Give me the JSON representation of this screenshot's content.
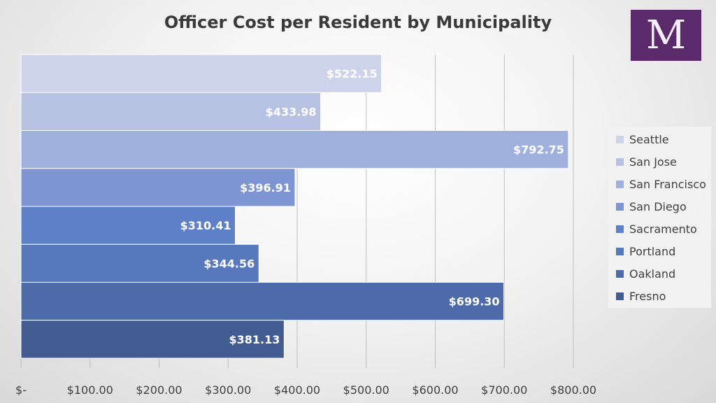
{
  "logo": {
    "letter": "M",
    "background": "#5a2a6a"
  },
  "chart_data": {
    "type": "bar",
    "orientation": "horizontal",
    "title": "Officer Cost per Resident by Municipality",
    "categories": [
      "Seattle",
      "San Jose",
      "San Francisco",
      "San Diego",
      "Sacramento",
      "Portland",
      "Oakland",
      "Fresno"
    ],
    "values": [
      522.15,
      433.98,
      792.75,
      396.91,
      310.41,
      344.56,
      699.3,
      381.13
    ],
    "data_labels": [
      "$522.15",
      "$433.98",
      "$792.75",
      "$396.91",
      "$310.41",
      "$344.56",
      "$699.30",
      "$381.13"
    ],
    "colors": [
      "#ccd3ea",
      "#b7c2e2",
      "#9fb0dd",
      "#7e95d3",
      "#5d80c8",
      "#5878bd",
      "#4d6aa9",
      "#425b91"
    ],
    "x_ticks": [
      0,
      100,
      200,
      300,
      400,
      500,
      600,
      700,
      800
    ],
    "x_tick_labels": [
      "$-",
      "$100.00",
      "$200.00",
      "$300.00",
      "$400.00",
      "$500.00",
      "$600.00",
      "$700.00",
      "$800.00"
    ],
    "xlim": [
      0,
      800
    ],
    "grid": true,
    "legend": {
      "position": "right",
      "entries": [
        "Seattle",
        "San Jose",
        "San Francisco",
        "San Diego",
        "Sacramento",
        "Portland",
        "Oakland",
        "Fresno"
      ]
    }
  }
}
